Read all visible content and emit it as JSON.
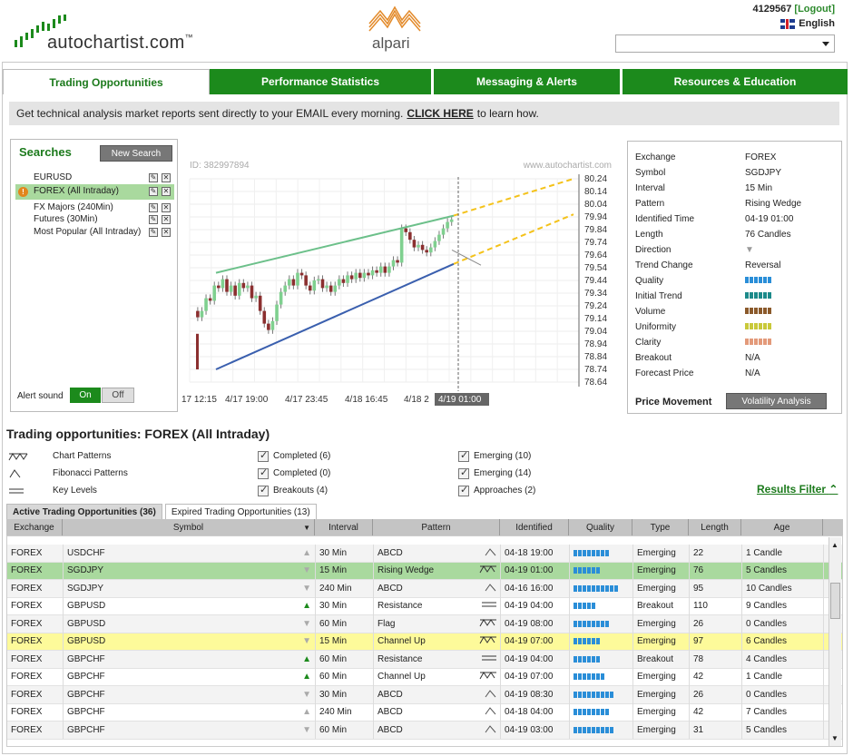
{
  "header": {
    "brand": "autochartist.com",
    "trademark": "™",
    "partner": "alpari",
    "account_id": "4129567",
    "logout": "[Logout]",
    "language": "English"
  },
  "tabs": [
    "Trading Opportunities",
    "Performance Statistics",
    "Messaging & Alerts",
    "Resources & Education"
  ],
  "banner": {
    "text_before": "Get technical analysis market reports sent directly to your EMAIL every morning.",
    "link": "CLICK HERE",
    "text_after": "to learn how."
  },
  "searches": {
    "title": "Searches",
    "new_button": "New Search",
    "items": [
      "EURUSD",
      "FOREX (All Intraday)",
      "FX Majors (240Min)",
      "Futures (30Min)",
      "Most Popular (All Intraday)"
    ],
    "alert_label": "Alert sound",
    "on": "On",
    "off": "Off"
  },
  "chart_data": {
    "type": "candlestick",
    "id_label": "ID: 382997894",
    "watermark": "www.autochartist.com",
    "y_ticks": [
      "80.24",
      "80.14",
      "80.04",
      "79.94",
      "79.84",
      "79.74",
      "79.64",
      "79.54",
      "79.44",
      "79.34",
      "79.24",
      "79.14",
      "79.04",
      "78.94",
      "78.84",
      "78.74",
      "78.64"
    ],
    "ylim": [
      78.64,
      80.24
    ],
    "x_ticks": [
      "17 12:15",
      "4/17 19:00",
      "4/17 23:45",
      "4/18 16:45",
      "4/18 2"
    ],
    "current_time_label": "4/19 01:00",
    "pattern": "Rising Wedge",
    "colors": {
      "up": "#7fd08f",
      "down": "#8b2f2f",
      "upper_line": "#6cc08a",
      "lower_line": "#3a5fae",
      "projection": "#f4c21a"
    }
  },
  "details": {
    "rows": [
      {
        "k": "Exchange",
        "v": "FOREX"
      },
      {
        "k": "Symbol",
        "v": "SGDJPY"
      },
      {
        "k": "Interval",
        "v": "15 Min"
      },
      {
        "k": "Pattern",
        "v": "Rising Wedge"
      },
      {
        "k": "Identified Time",
        "v": "04-19 01:00"
      },
      {
        "k": "Length",
        "v": "76 Candles"
      },
      {
        "k": "Direction",
        "v": "▼"
      },
      {
        "k": "Trend Change",
        "v": "Reversal"
      },
      {
        "k": "Quality",
        "v": ""
      },
      {
        "k": "Initial Trend",
        "v": ""
      },
      {
        "k": "Volume",
        "v": ""
      },
      {
        "k": "Uniformity",
        "v": ""
      },
      {
        "k": "Clarity",
        "v": ""
      },
      {
        "k": "Breakout",
        "v": "N/A"
      },
      {
        "k": "Forecast Price",
        "v": "N/A"
      }
    ],
    "price_movement": "Price Movement",
    "volatility_button": "Volatility Analysis"
  },
  "opportunities": {
    "title": "Trading opportunities: FOREX (All Intraday)",
    "pattern_types": [
      "Chart Patterns",
      "Fibonacci Patterns",
      "Key Levels"
    ],
    "filters_col2": [
      "Completed (6)",
      "Completed (0)",
      "Breakouts (4)"
    ],
    "filters_col3": [
      "Emerging (10)",
      "Emerging (14)",
      "Approaches (2)"
    ],
    "results_filter": "Results Filter",
    "subtabs": [
      "Active Trading Opportunities (36)",
      "Expired Trading Opportunities (13)"
    ],
    "columns": [
      "Exchange",
      "Symbol",
      "Interval",
      "Pattern",
      "Identified",
      "Quality",
      "Type",
      "Length",
      "Age"
    ],
    "rows": [
      {
        "exchange": "FOREX",
        "symbol": "USDCHF",
        "dir": "up",
        "interval": "30 Min",
        "pattern": "ABCD",
        "ptype": "fib",
        "identified": "04-18 19:00",
        "quality": 8,
        "type": "Emerging",
        "length": "22",
        "age": "1 Candle",
        "hl": ""
      },
      {
        "exchange": "FOREX",
        "symbol": "SGDJPY",
        "dir": "down",
        "interval": "15 Min",
        "pattern": "Rising Wedge",
        "ptype": "chart",
        "identified": "04-19 01:00",
        "quality": 6,
        "type": "Emerging",
        "length": "76",
        "age": "5 Candles",
        "hl": "green"
      },
      {
        "exchange": "FOREX",
        "symbol": "SGDJPY",
        "dir": "down",
        "interval": "240 Min",
        "pattern": "ABCD",
        "ptype": "fib",
        "identified": "04-16 16:00",
        "quality": 10,
        "type": "Emerging",
        "length": "95",
        "age": "10 Candles",
        "hl": ""
      },
      {
        "exchange": "FOREX",
        "symbol": "GBPUSD",
        "dir": "upgreen",
        "interval": "30 Min",
        "pattern": "Resistance",
        "ptype": "key",
        "identified": "04-19 04:00",
        "quality": 5,
        "type": "Breakout",
        "length": "110",
        "age": "9 Candles",
        "hl": ""
      },
      {
        "exchange": "FOREX",
        "symbol": "GBPUSD",
        "dir": "down",
        "interval": "60 Min",
        "pattern": "Flag",
        "ptype": "chart",
        "identified": "04-19 08:00",
        "quality": 8,
        "type": "Emerging",
        "length": "26",
        "age": "0 Candles",
        "hl": ""
      },
      {
        "exchange": "FOREX",
        "symbol": "GBPUSD",
        "dir": "down",
        "interval": "15 Min",
        "pattern": "Channel Up",
        "ptype": "chart",
        "identified": "04-19 07:00",
        "quality": 6,
        "type": "Emerging",
        "length": "97",
        "age": "6 Candles",
        "hl": "yellow"
      },
      {
        "exchange": "FOREX",
        "symbol": "GBPCHF",
        "dir": "upgreen",
        "interval": "60 Min",
        "pattern": "Resistance",
        "ptype": "key",
        "identified": "04-19 04:00",
        "quality": 6,
        "type": "Breakout",
        "length": "78",
        "age": "4 Candles",
        "hl": ""
      },
      {
        "exchange": "FOREX",
        "symbol": "GBPCHF",
        "dir": "upgreen",
        "interval": "60 Min",
        "pattern": "Channel Up",
        "ptype": "chart",
        "identified": "04-19 07:00",
        "quality": 7,
        "type": "Emerging",
        "length": "42",
        "age": "1 Candle",
        "hl": ""
      },
      {
        "exchange": "FOREX",
        "symbol": "GBPCHF",
        "dir": "down",
        "interval": "30 Min",
        "pattern": "ABCD",
        "ptype": "fib",
        "identified": "04-19 08:30",
        "quality": 9,
        "type": "Emerging",
        "length": "26",
        "age": "0 Candles",
        "hl": ""
      },
      {
        "exchange": "FOREX",
        "symbol": "GBPCHF",
        "dir": "up",
        "interval": "240 Min",
        "pattern": "ABCD",
        "ptype": "fib",
        "identified": "04-18 04:00",
        "quality": 8,
        "type": "Emerging",
        "length": "42",
        "age": "7 Candles",
        "hl": ""
      },
      {
        "exchange": "FOREX",
        "symbol": "GBPCHF",
        "dir": "down",
        "interval": "60 Min",
        "pattern": "ABCD",
        "ptype": "fib",
        "identified": "04-19 03:00",
        "quality": 9,
        "type": "Emerging",
        "length": "31",
        "age": "5 Candles",
        "hl": ""
      }
    ]
  }
}
